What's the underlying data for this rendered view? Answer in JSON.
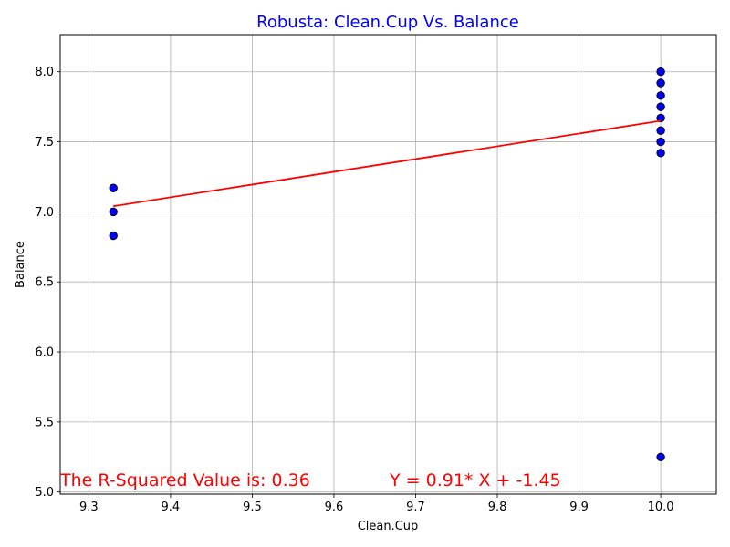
{
  "chart_data": {
    "type": "scatter",
    "title": "Robusta: Clean.Cup Vs. Balance",
    "xlabel": "Clean.Cup",
    "ylabel": "Balance",
    "xlim": [
      9.265,
      10.068
    ],
    "ylim": [
      4.985,
      8.265
    ],
    "xticks": [
      9.3,
      9.4,
      9.5,
      9.6,
      9.7,
      9.8,
      9.9,
      10.0
    ],
    "xtick_labels": [
      "9.3",
      "9.4",
      "9.5",
      "9.6",
      "9.7",
      "9.8",
      "9.9",
      "10.0"
    ],
    "yticks": [
      5.0,
      5.5,
      6.0,
      6.5,
      7.0,
      7.5,
      8.0
    ],
    "ytick_labels": [
      "5.0",
      "5.5",
      "6.0",
      "6.5",
      "7.0",
      "7.5",
      "8.0"
    ],
    "grid": true,
    "points": [
      {
        "x": 9.33,
        "y": 7.17
      },
      {
        "x": 9.33,
        "y": 7.0
      },
      {
        "x": 9.33,
        "y": 6.83
      },
      {
        "x": 10.0,
        "y": 8.0
      },
      {
        "x": 10.0,
        "y": 7.92
      },
      {
        "x": 10.0,
        "y": 7.83
      },
      {
        "x": 10.0,
        "y": 7.75
      },
      {
        "x": 10.0,
        "y": 7.67
      },
      {
        "x": 10.0,
        "y": 7.58
      },
      {
        "x": 10.0,
        "y": 7.5
      },
      {
        "x": 10.0,
        "y": 7.42
      },
      {
        "x": 10.0,
        "y": 5.25
      }
    ],
    "regression": {
      "slope": 0.91,
      "intercept": -1.45,
      "x_range": [
        9.33,
        10.0
      ]
    },
    "annotations": {
      "r_squared": "The R-Squared Value is: 0.36",
      "equation": "Y = 0.91* X + -1.45"
    },
    "colors": {
      "title": "#0000ff",
      "point_fill": "#0000ff",
      "point_edge": "#000000",
      "regression_line": "#ff0000",
      "annotation": "#ff0000",
      "grid": "#b0b0b0"
    }
  }
}
